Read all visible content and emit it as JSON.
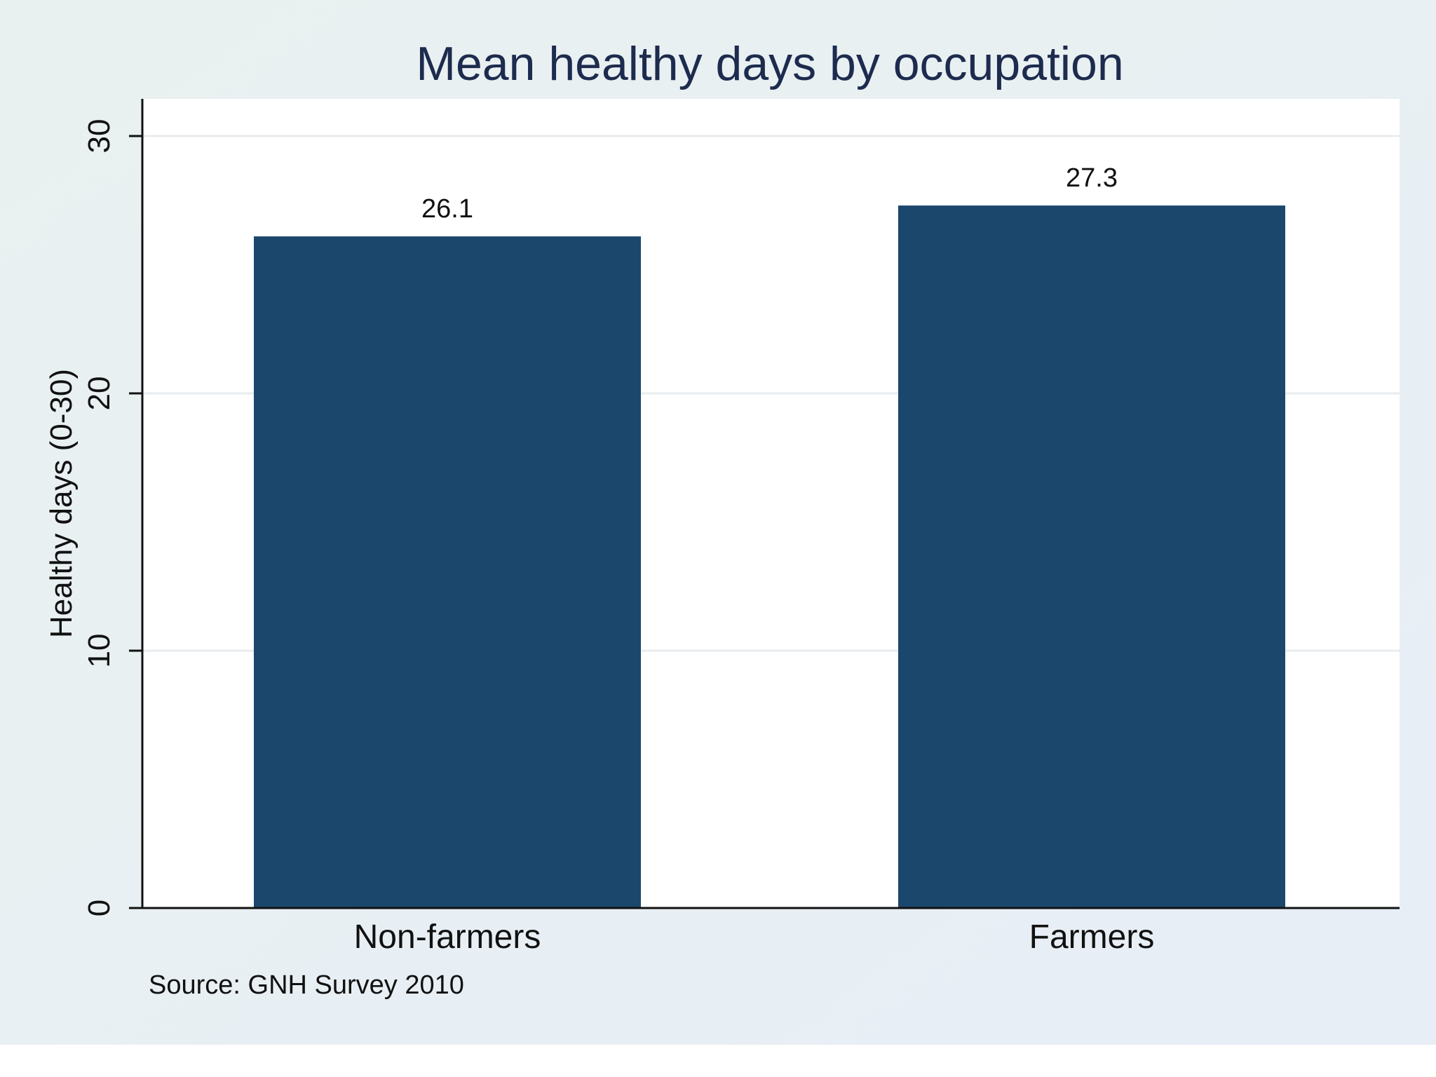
{
  "chart_data": {
    "type": "bar",
    "title": "Mean healthy days by occupation",
    "categories": [
      "Non-farmers",
      "Farmers"
    ],
    "values": [
      26.1,
      27.3
    ],
    "value_labels": [
      "26.1",
      "27.3"
    ],
    "xlabel": "",
    "ylabel": "Healthy days (0-30)",
    "ylim": [
      0,
      30
    ],
    "yticks": [
      0,
      10,
      20,
      30
    ],
    "ytick_labels": [
      "0",
      "10",
      "20",
      "30"
    ],
    "grid": true,
    "note": "Source: GNH Survey 2010"
  },
  "colors": {
    "bar": "#1c476d",
    "background_left": "#e9f1f0",
    "background_right": "#e8eef6",
    "plot_area": "#ffffff",
    "grid": "#e8ecef",
    "title": "#1d2b4e",
    "text": "#111111",
    "axis": "#111111"
  }
}
